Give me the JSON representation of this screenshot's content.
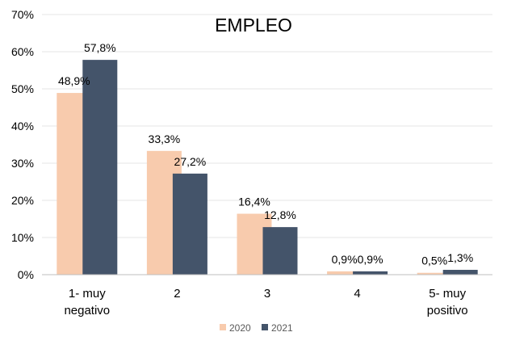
{
  "chart_data": {
    "type": "bar",
    "title": "EMPLEO",
    "categories": [
      [
        "1- muy",
        "negativo"
      ],
      [
        "2"
      ],
      [
        "3"
      ],
      [
        "4"
      ],
      [
        "5- muy",
        "positivo"
      ]
    ],
    "series": [
      {
        "name": "2020",
        "color": "#f8cbad",
        "values": [
          48.9,
          33.3,
          16.4,
          0.9,
          0.5
        ],
        "labels": [
          "48,9%",
          "33,3%",
          "16,4%",
          "0,9%",
          "0,5%"
        ]
      },
      {
        "name": "2021",
        "color": "#44546a",
        "values": [
          57.8,
          27.2,
          12.8,
          0.9,
          1.3
        ],
        "labels": [
          "57,8%",
          "27,2%",
          "12,8%",
          "0,9%",
          "1,3%"
        ]
      }
    ],
    "ylim": [
      0,
      70
    ],
    "yticks": [
      0,
      10,
      20,
      30,
      40,
      50,
      60,
      70
    ],
    "ytick_labels": [
      "0%",
      "10%",
      "20%",
      "30%",
      "40%",
      "50%",
      "60%",
      "70%"
    ],
    "grid": true,
    "legend": "bottom-center"
  }
}
